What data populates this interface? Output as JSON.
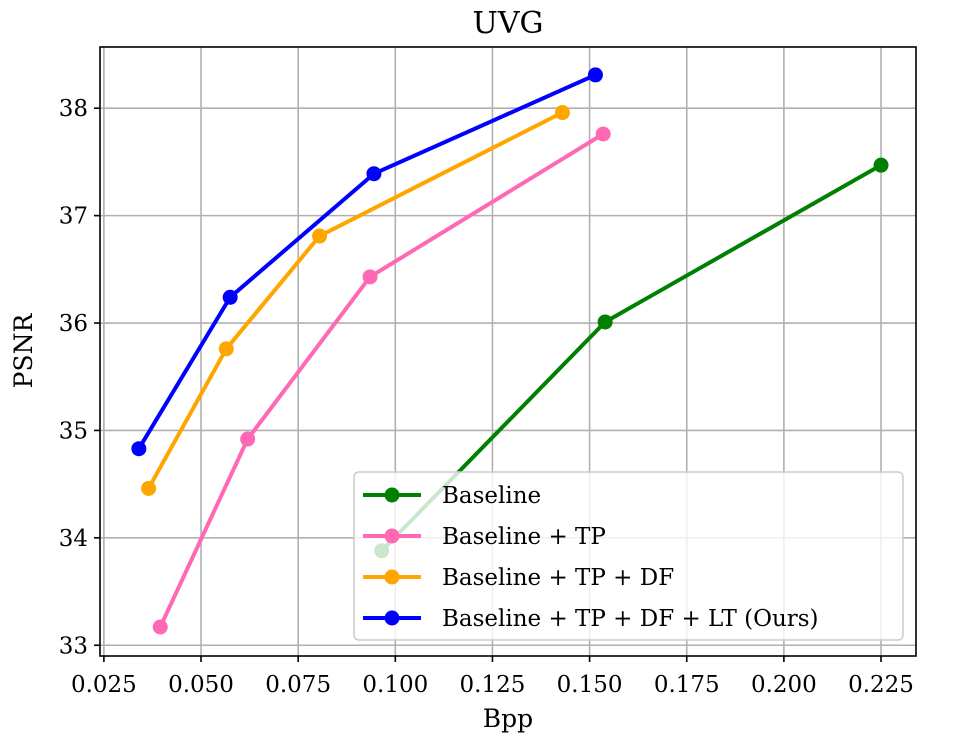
{
  "chart_data": {
    "type": "line",
    "title": "UVG",
    "xlabel": "Bpp",
    "ylabel": "PSNR",
    "xlim": [
      0.024,
      0.234
    ],
    "ylim": [
      32.9,
      38.57
    ],
    "grid": true,
    "legend_position": "lower-right",
    "x_ticks": [
      0.025,
      0.05,
      0.075,
      0.1,
      0.125,
      0.15,
      0.175,
      0.2,
      0.225
    ],
    "x_tick_labels": [
      "0.025",
      "0.050",
      "0.075",
      "0.100",
      "0.125",
      "0.150",
      "0.175",
      "0.200",
      "0.225"
    ],
    "y_ticks": [
      33,
      34,
      35,
      36,
      37,
      38
    ],
    "y_tick_labels": [
      "33",
      "34",
      "35",
      "36",
      "37",
      "38"
    ],
    "series": [
      {
        "name": "Baseline",
        "color": "#008000",
        "x": [
          0.0965,
          0.154,
          0.225
        ],
        "y": [
          33.88,
          36.01,
          37.47
        ]
      },
      {
        "name": "Baseline + TP",
        "color": "#ff69b4",
        "x": [
          0.0395,
          0.062,
          0.0935,
          0.1535
        ],
        "y": [
          33.17,
          34.92,
          36.43,
          37.76
        ]
      },
      {
        "name": "Baseline + TP + DF",
        "color": "#ffa500",
        "x": [
          0.0365,
          0.0565,
          0.0805,
          0.143
        ],
        "y": [
          34.46,
          35.76,
          36.81,
          37.96
        ]
      },
      {
        "name": "Baseline + TP + DF + LT (Ours)",
        "color": "#0000ff",
        "x": [
          0.034,
          0.0575,
          0.0945,
          0.1515
        ],
        "y": [
          34.83,
          36.24,
          37.39,
          38.31
        ]
      }
    ]
  }
}
